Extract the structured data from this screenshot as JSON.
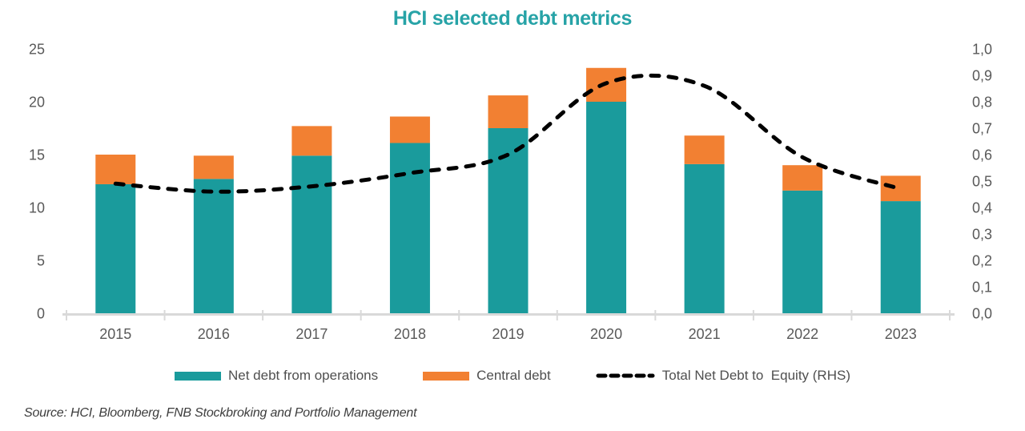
{
  "chart": {
    "title": "HCI selected debt metrics"
  },
  "legend": {
    "net_debt": "Net debt from operations",
    "central_debt": "Central debt",
    "ratio": "Total Net Debt to  Equity (RHS)"
  },
  "source": "Source: HCI, Bloomberg, FNB Stockbroking and Portfolio Management",
  "colors": {
    "teal": "#1A9B9C",
    "orange": "#F28032",
    "title_teal": "#27A3A7",
    "axis_text": "#595959",
    "axis_line": "#D9D9D9",
    "line_black": "#000000",
    "source_text": "#3d3d3d"
  },
  "chart_data": {
    "type": "bar",
    "subtype": "stacked-bars-with-line",
    "title": "HCI selected debt metrics",
    "categories": [
      "2015",
      "2016",
      "2017",
      "2018",
      "2019",
      "2020",
      "2021",
      "2022",
      "2023"
    ],
    "series": [
      {
        "name": "Net debt from operations",
        "kind": "bar",
        "stack": true,
        "axis": "left",
        "color_key": "teal",
        "values": [
          12.2,
          12.7,
          14.9,
          16.1,
          17.5,
          20.0,
          14.1,
          11.6,
          10.6
        ]
      },
      {
        "name": "Central debt",
        "kind": "bar",
        "stack": true,
        "axis": "left",
        "color_key": "orange",
        "values": [
          2.8,
          2.2,
          2.8,
          2.5,
          3.1,
          3.2,
          2.7,
          2.4,
          2.4
        ]
      },
      {
        "name": "Total Net Debt to  Equity (RHS)",
        "kind": "line",
        "dashed": true,
        "smooth": true,
        "axis": "right",
        "color_key": "line_black",
        "values": [
          0.49,
          0.46,
          0.48,
          0.53,
          0.6,
          0.87,
          0.86,
          0.59,
          0.47
        ]
      }
    ],
    "left_axis": {
      "min": 0,
      "max": 25,
      "tick_labels": [
        "0",
        "5",
        "10",
        "15",
        "20",
        "25"
      ],
      "tick_values": [
        0,
        5,
        10,
        15,
        20,
        25
      ]
    },
    "right_axis": {
      "min": 0.0,
      "max": 1.0,
      "tick_labels": [
        "0,0",
        "0,1",
        "0,2",
        "0,3",
        "0,4",
        "0,5",
        "0,6",
        "0,7",
        "0,8",
        "0,9",
        "1,0"
      ],
      "tick_values": [
        0.0,
        0.1,
        0.2,
        0.3,
        0.4,
        0.5,
        0.6,
        0.7,
        0.8,
        0.9,
        1.0
      ]
    },
    "grid": false,
    "legend_position": "bottom"
  }
}
